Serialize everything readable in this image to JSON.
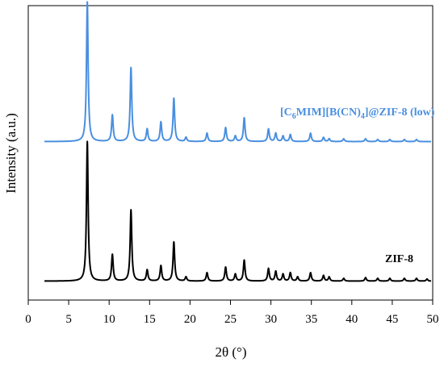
{
  "chart_data": {
    "type": "line",
    "xlabel": "2θ (°)",
    "ylabel": "Intensity (a.u.)",
    "xlim": [
      0,
      50
    ],
    "xticks": [
      0,
      5,
      10,
      15,
      20,
      25,
      30,
      35,
      40,
      45,
      50
    ],
    "y_tick_labels": false,
    "grid": false,
    "series": [
      {
        "name": "[C6MIM][B(CN)4]@ZIF-8 (low)",
        "label_parts": {
          "a": "[C",
          "s1": "6",
          "b": "MIM][B(CN)",
          "s2": "4",
          "c": "]@ZIF-8 (low)"
        },
        "color": "#4a8fe0",
        "offset": 1.0,
        "baseline": 0.02,
        "peaks": [
          {
            "x": 7.3,
            "y": 1.0
          },
          {
            "x": 10.4,
            "y": 0.19
          },
          {
            "x": 12.7,
            "y": 0.53
          },
          {
            "x": 14.7,
            "y": 0.09
          },
          {
            "x": 16.4,
            "y": 0.14
          },
          {
            "x": 18.0,
            "y": 0.31
          },
          {
            "x": 19.5,
            "y": 0.03
          },
          {
            "x": 22.1,
            "y": 0.06
          },
          {
            "x": 24.4,
            "y": 0.1
          },
          {
            "x": 25.6,
            "y": 0.04
          },
          {
            "x": 26.7,
            "y": 0.17
          },
          {
            "x": 29.7,
            "y": 0.09
          },
          {
            "x": 30.6,
            "y": 0.06
          },
          {
            "x": 31.5,
            "y": 0.04
          },
          {
            "x": 32.4,
            "y": 0.05
          },
          {
            "x": 34.9,
            "y": 0.06
          },
          {
            "x": 36.5,
            "y": 0.03
          },
          {
            "x": 37.2,
            "y": 0.02
          },
          {
            "x": 39.0,
            "y": 0.02
          },
          {
            "x": 41.7,
            "y": 0.02
          },
          {
            "x": 43.2,
            "y": 0.015
          },
          {
            "x": 44.7,
            "y": 0.015
          },
          {
            "x": 46.5,
            "y": 0.015
          },
          {
            "x": 48.0,
            "y": 0.015
          }
        ]
      },
      {
        "name": "ZIF-8",
        "color": "#000000",
        "offset": 0.0,
        "baseline": 0.02,
        "peaks": [
          {
            "x": 7.3,
            "y": 1.0
          },
          {
            "x": 10.4,
            "y": 0.19
          },
          {
            "x": 12.7,
            "y": 0.51
          },
          {
            "x": 14.7,
            "y": 0.08
          },
          {
            "x": 16.4,
            "y": 0.11
          },
          {
            "x": 18.0,
            "y": 0.28
          },
          {
            "x": 19.5,
            "y": 0.03
          },
          {
            "x": 22.1,
            "y": 0.06
          },
          {
            "x": 24.4,
            "y": 0.1
          },
          {
            "x": 25.6,
            "y": 0.05
          },
          {
            "x": 26.7,
            "y": 0.15
          },
          {
            "x": 29.7,
            "y": 0.09
          },
          {
            "x": 30.6,
            "y": 0.07
          },
          {
            "x": 31.5,
            "y": 0.05
          },
          {
            "x": 32.4,
            "y": 0.06
          },
          {
            "x": 33.3,
            "y": 0.03
          },
          {
            "x": 34.9,
            "y": 0.06
          },
          {
            "x": 36.5,
            "y": 0.04
          },
          {
            "x": 37.2,
            "y": 0.03
          },
          {
            "x": 39.0,
            "y": 0.02
          },
          {
            "x": 41.7,
            "y": 0.025
          },
          {
            "x": 43.2,
            "y": 0.02
          },
          {
            "x": 44.7,
            "y": 0.02
          },
          {
            "x": 46.5,
            "y": 0.02
          },
          {
            "x": 48.0,
            "y": 0.02
          },
          {
            "x": 49.3,
            "y": 0.015
          }
        ]
      }
    ]
  }
}
